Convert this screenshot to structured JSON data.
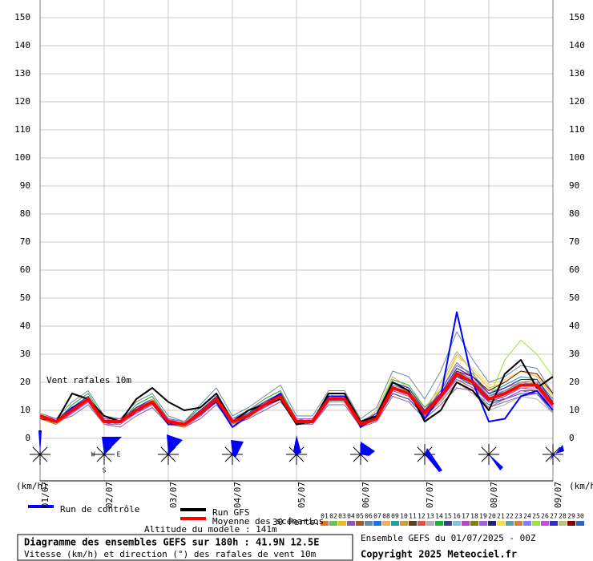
{
  "chart_data": {
    "type": "line",
    "annotation": "Vent rafales 10m",
    "y_unit": "(km/h)",
    "categories": [
      "01/07",
      null,
      null,
      null,
      "02/07",
      null,
      null,
      null,
      "03/07",
      null,
      null,
      null,
      "04/07",
      null,
      null,
      null,
      "05/07",
      null,
      null,
      null,
      "06/07",
      null,
      null,
      null,
      "07/07",
      null,
      null,
      null,
      "08/07",
      null,
      null,
      null,
      "09/07"
    ],
    "ylim": [
      0,
      150
    ],
    "yticks": [
      0,
      10,
      20,
      30,
      40,
      50,
      60,
      70,
      80,
      90,
      100,
      110,
      120,
      130,
      140,
      150
    ],
    "grid": true,
    "compass_labels": [
      "W",
      "E",
      "S"
    ],
    "perturbations_label": "30 Perts.",
    "altitude": "Altitude du modele : 141m",
    "info_title": "Diagramme des ensembles GEFS sur 180h : 41.9N 12.5E",
    "info_subtitle": "Vitesse (km/h) et direction (°) des rafales de vent 10m",
    "run_label": "Ensemble GEFS du 01/07/2025 - 00Z",
    "copyright": "Copyright 2025 Meteociel.fr",
    "series": [
      {
        "name": "01",
        "color": "#e8742a",
        "values": [
          8,
          7,
          11,
          15,
          5,
          6,
          11,
          14,
          7,
          4,
          10,
          15,
          5,
          9,
          13,
          16,
          5,
          7,
          15,
          15,
          4,
          8,
          19,
          17,
          8,
          14,
          25,
          22,
          15,
          18,
          20,
          21,
          13
        ]
      },
      {
        "name": "02",
        "color": "#6fc05a",
        "values": [
          9,
          6,
          9,
          13,
          6,
          7,
          9,
          12,
          6,
          5,
          8,
          13,
          6,
          8,
          11,
          14,
          7,
          6,
          13,
          13,
          6,
          9,
          17,
          15,
          10,
          16,
          21,
          19,
          13,
          15,
          18,
          18,
          11
        ]
      },
      {
        "name": "03",
        "color": "#e8c020",
        "values": [
          7,
          5,
          12,
          16,
          7,
          5,
          12,
          15,
          5,
          6,
          11,
          16,
          7,
          10,
          14,
          17,
          5,
          6,
          16,
          16,
          5,
          10,
          22,
          18,
          11,
          18,
          30,
          24,
          18,
          20,
          24,
          22,
          15
        ]
      },
      {
        "name": "04",
        "color": "#8a5ab0",
        "values": [
          8,
          6,
          8,
          12,
          5,
          4,
          8,
          11,
          5,
          4,
          7,
          12,
          5,
          7,
          10,
          13,
          6,
          5,
          12,
          12,
          4,
          6,
          15,
          13,
          7,
          12,
          18,
          17,
          11,
          13,
          15,
          16,
          9
        ]
      },
      {
        "name": "05",
        "color": "#a05a2a",
        "values": [
          8,
          7,
          10,
          14,
          6,
          6,
          10,
          14,
          7,
          5,
          9,
          15,
          6,
          9,
          12,
          15,
          6,
          7,
          14,
          15,
          5,
          8,
          19,
          17,
          9,
          15,
          24,
          20,
          15,
          17,
          20,
          20,
          12
        ]
      },
      {
        "name": "06",
        "color": "#6a8aa0",
        "values": [
          9,
          7,
          13,
          17,
          8,
          7,
          13,
          16,
          8,
          6,
          12,
          18,
          8,
          11,
          15,
          19,
          8,
          8,
          17,
          17,
          7,
          11,
          24,
          22,
          14,
          24,
          38,
          28,
          20,
          22,
          26,
          25,
          16
        ]
      },
      {
        "name": "07",
        "color": "#2070e0",
        "values": [
          8,
          6,
          9,
          13,
          5,
          6,
          9,
          12,
          6,
          5,
          8,
          13,
          5,
          8,
          11,
          14,
          6,
          5,
          13,
          13,
          5,
          7,
          16,
          14,
          8,
          13,
          20,
          17,
          12,
          14,
          17,
          17,
          10
        ]
      },
      {
        "name": "08",
        "color": "#f0b060",
        "values": [
          7,
          6,
          10,
          15,
          6,
          5,
          10,
          14,
          6,
          4,
          9,
          14,
          6,
          9,
          12,
          15,
          6,
          6,
          15,
          14,
          4,
          8,
          18,
          16,
          9,
          15,
          22,
          20,
          14,
          16,
          19,
          19,
          12
        ]
      },
      {
        "name": "09",
        "color": "#20a0a0",
        "values": [
          8,
          5,
          11,
          14,
          7,
          6,
          11,
          13,
          6,
          5,
          10,
          14,
          6,
          9,
          13,
          16,
          7,
          6,
          14,
          15,
          5,
          8,
          20,
          18,
          10,
          17,
          26,
          23,
          16,
          19,
          22,
          21,
          14
        ]
      },
      {
        "name": "10",
        "color": "#c8a040",
        "values": [
          9,
          6,
          10,
          14,
          6,
          6,
          10,
          13,
          7,
          5,
          9,
          14,
          7,
          9,
          12,
          15,
          6,
          6,
          14,
          14,
          5,
          8,
          18,
          16,
          9,
          15,
          23,
          20,
          14,
          16,
          19,
          20,
          12
        ]
      },
      {
        "name": "11",
        "color": "#604020",
        "values": [
          8,
          6,
          11,
          15,
          6,
          6,
          11,
          14,
          7,
          5,
          10,
          15,
          6,
          9,
          13,
          16,
          7,
          6,
          15,
          15,
          5,
          9,
          20,
          18,
          10,
          16,
          25,
          22,
          16,
          18,
          21,
          21,
          13
        ]
      },
      {
        "name": "12",
        "color": "#e05050",
        "values": [
          7,
          5,
          9,
          13,
          5,
          5,
          9,
          12,
          5,
          4,
          8,
          13,
          5,
          8,
          11,
          14,
          5,
          5,
          13,
          13,
          4,
          7,
          17,
          15,
          8,
          14,
          21,
          18,
          13,
          15,
          18,
          17,
          11
        ]
      },
      {
        "name": "13",
        "color": "#b0b0b0",
        "values": [
          8,
          7,
          10,
          14,
          6,
          7,
          10,
          13,
          6,
          5,
          9,
          14,
          6,
          9,
          12,
          15,
          6,
          7,
          14,
          14,
          5,
          8,
          18,
          16,
          9,
          20,
          31,
          24,
          10,
          12,
          15,
          14,
          9
        ]
      },
      {
        "name": "14",
        "color": "#20b040",
        "values": [
          8,
          6,
          12,
          16,
          7,
          6,
          12,
          15,
          7,
          6,
          11,
          16,
          7,
          10,
          14,
          17,
          7,
          6,
          16,
          16,
          6,
          9,
          21,
          19,
          11,
          16,
          24,
          21,
          15,
          17,
          20,
          20,
          13
        ]
      },
      {
        "name": "15",
        "color": "#404080",
        "values": [
          9,
          6,
          9,
          13,
          6,
          6,
          9,
          12,
          6,
          5,
          8,
          13,
          6,
          8,
          11,
          14,
          6,
          6,
          13,
          13,
          5,
          7,
          16,
          14,
          8,
          14,
          22,
          19,
          13,
          15,
          18,
          18,
          11
        ]
      },
      {
        "name": "16",
        "color": "#80c0e0",
        "values": [
          8,
          6,
          10,
          15,
          6,
          6,
          10,
          14,
          6,
          5,
          9,
          15,
          6,
          9,
          12,
          16,
          6,
          6,
          14,
          14,
          5,
          8,
          19,
          17,
          9,
          15,
          24,
          21,
          14,
          17,
          20,
          19,
          12
        ]
      },
      {
        "name": "17",
        "color": "#c040c0",
        "values": [
          7,
          6,
          11,
          14,
          5,
          6,
          11,
          13,
          5,
          5,
          10,
          14,
          5,
          9,
          13,
          15,
          5,
          6,
          14,
          14,
          4,
          8,
          19,
          17,
          10,
          17,
          27,
          22,
          16,
          14,
          17,
          16,
          10
        ]
      },
      {
        "name": "18",
        "color": "#808000",
        "values": [
          8,
          5,
          10,
          13,
          6,
          5,
          10,
          12,
          6,
          4,
          9,
          13,
          6,
          8,
          12,
          14,
          6,
          5,
          13,
          13,
          5,
          8,
          17,
          15,
          9,
          15,
          22,
          19,
          14,
          16,
          18,
          18,
          11
        ]
      },
      {
        "name": "19",
        "color": "#a060e0",
        "values": [
          9,
          7,
          11,
          15,
          7,
          7,
          11,
          14,
          7,
          6,
          10,
          15,
          7,
          10,
          13,
          16,
          7,
          7,
          15,
          15,
          6,
          9,
          20,
          18,
          10,
          16,
          24,
          21,
          15,
          17,
          20,
          20,
          13
        ]
      },
      {
        "name": "20",
        "color": "#202080",
        "values": [
          8,
          6,
          9,
          14,
          6,
          6,
          9,
          13,
          6,
          5,
          8,
          14,
          6,
          8,
          11,
          15,
          6,
          6,
          14,
          14,
          5,
          8,
          18,
          16,
          9,
          14,
          22,
          20,
          14,
          16,
          19,
          19,
          12
        ]
      },
      {
        "name": "21",
        "color": "#f0e040",
        "values": [
          8,
          6,
          10,
          14,
          6,
          6,
          10,
          13,
          6,
          5,
          9,
          14,
          6,
          9,
          12,
          15,
          6,
          6,
          14,
          14,
          5,
          8,
          18,
          16,
          9,
          18,
          29,
          25,
          19,
          21,
          24,
          23,
          15
        ]
      },
      {
        "name": "22",
        "color": "#60a0a0",
        "values": [
          8,
          6,
          11,
          15,
          6,
          6,
          11,
          14,
          6,
          5,
          10,
          15,
          6,
          9,
          13,
          16,
          6,
          6,
          15,
          15,
          5,
          9,
          19,
          17,
          10,
          15,
          23,
          20,
          14,
          17,
          20,
          20,
          12
        ]
      },
      {
        "name": "23",
        "color": "#d08040",
        "values": [
          7,
          5,
          10,
          14,
          5,
          5,
          10,
          13,
          5,
          4,
          9,
          14,
          5,
          8,
          12,
          15,
          5,
          5,
          14,
          14,
          4,
          8,
          18,
          16,
          8,
          13,
          20,
          16,
          11,
          14,
          16,
          16,
          10
        ]
      },
      {
        "name": "24",
        "color": "#8080ff",
        "values": [
          8,
          7,
          10,
          14,
          7,
          6,
          10,
          13,
          7,
          5,
          9,
          14,
          7,
          9,
          12,
          15,
          7,
          6,
          14,
          14,
          6,
          8,
          18,
          16,
          10,
          16,
          24,
          21,
          15,
          18,
          21,
          21,
          13
        ]
      },
      {
        "name": "25",
        "color": "#a0e040",
        "values": [
          9,
          6,
          10,
          14,
          6,
          6,
          10,
          13,
          6,
          5,
          9,
          14,
          6,
          9,
          12,
          15,
          6,
          6,
          14,
          14,
          5,
          8,
          18,
          16,
          9,
          15,
          23,
          20,
          14,
          28,
          35,
          30,
          22
        ]
      },
      {
        "name": "26",
        "color": "#c050e0",
        "values": [
          8,
          6,
          9,
          13,
          6,
          5,
          9,
          12,
          6,
          5,
          8,
          13,
          6,
          8,
          11,
          14,
          6,
          5,
          13,
          13,
          5,
          7,
          17,
          15,
          8,
          14,
          21,
          18,
          13,
          15,
          18,
          18,
          11
        ]
      },
      {
        "name": "27",
        "color": "#3030c0",
        "values": [
          8,
          6,
          11,
          15,
          6,
          6,
          11,
          14,
          6,
          5,
          10,
          15,
          6,
          9,
          13,
          16,
          6,
          6,
          15,
          15,
          5,
          9,
          20,
          18,
          10,
          16,
          25,
          22,
          16,
          18,
          21,
          21,
          13
        ]
      },
      {
        "name": "28",
        "color": "#c0c080",
        "values": [
          8,
          6,
          10,
          14,
          6,
          6,
          10,
          14,
          6,
          5,
          9,
          14,
          6,
          9,
          12,
          15,
          6,
          6,
          14,
          15,
          5,
          8,
          18,
          17,
          9,
          15,
          23,
          20,
          14,
          16,
          19,
          19,
          12
        ]
      },
      {
        "name": "29",
        "color": "#800000",
        "values": [
          7,
          6,
          10,
          14,
          6,
          6,
          10,
          13,
          6,
          5,
          9,
          14,
          6,
          9,
          12,
          15,
          6,
          6,
          14,
          14,
          5,
          8,
          18,
          16,
          9,
          15,
          24,
          22,
          17,
          20,
          24,
          23,
          16
        ]
      },
      {
        "name": "30",
        "color": "#3060c0",
        "values": [
          8,
          6,
          10,
          14,
          6,
          6,
          10,
          13,
          6,
          5,
          9,
          14,
          6,
          9,
          12,
          15,
          6,
          6,
          14,
          14,
          5,
          8,
          18,
          16,
          9,
          15,
          22,
          19,
          13,
          14,
          16,
          16,
          10
        ]
      },
      {
        "name": "Run de contrôle",
        "color": "#0000ff",
        "width": 2,
        "values": [
          8,
          6,
          11,
          14,
          6,
          6,
          10,
          13,
          5,
          5,
          9,
          13,
          4,
          8,
          12,
          16,
          5,
          6,
          15,
          15,
          4,
          8,
          20,
          17,
          7,
          15,
          45,
          20,
          6,
          7,
          15,
          17,
          10
        ]
      },
      {
        "name": "Run GFS",
        "color": "#000000",
        "width": 2,
        "values": [
          8,
          6,
          16,
          14,
          8,
          6,
          14,
          18,
          13,
          10,
          11,
          16,
          6,
          10,
          12,
          14,
          5,
          6,
          16,
          16,
          6,
          8,
          20,
          17,
          6,
          10,
          20,
          17,
          10,
          23,
          28,
          18,
          22
        ]
      },
      {
        "name": "Moyenne des scénarios",
        "color": "#ff0000",
        "width": 4,
        "values": [
          8,
          6,
          10,
          14,
          6,
          6,
          10,
          13,
          6,
          5,
          9,
          14,
          6,
          8,
          12,
          15,
          6,
          6,
          14,
          14,
          5,
          7,
          18,
          16,
          9,
          15,
          23,
          20,
          14,
          16,
          19,
          19,
          12
        ]
      }
    ]
  }
}
